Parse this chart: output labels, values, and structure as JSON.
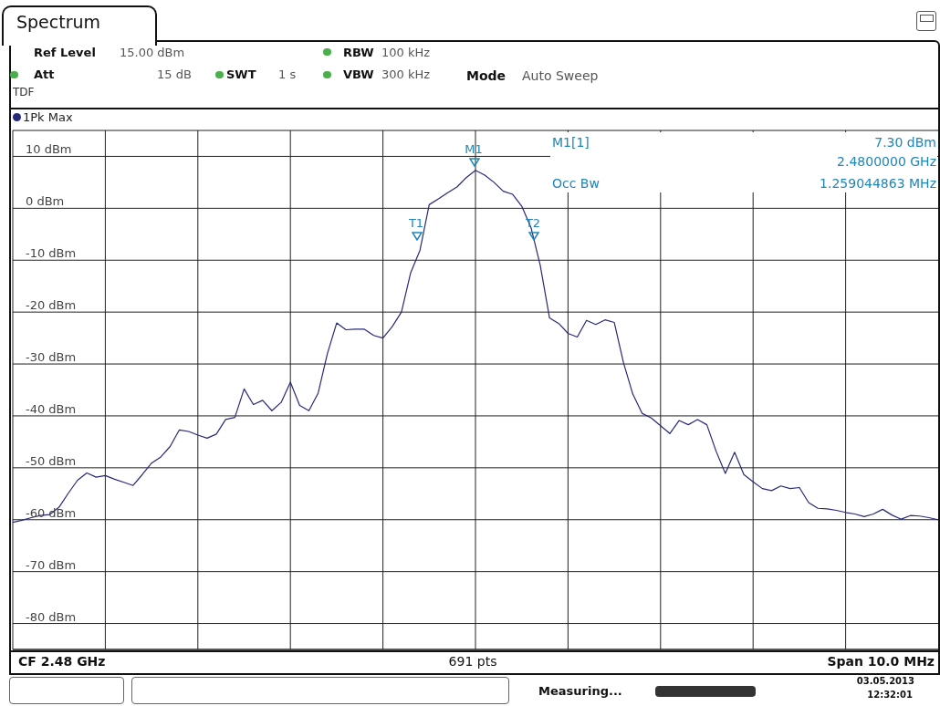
{
  "chart_data": {
    "type": "line",
    "title": "Spectrum",
    "categories": [
      null,
      null,
      null,
      null,
      null,
      null,
      null,
      null,
      null,
      null,
      null,
      null,
      null,
      null,
      null,
      null,
      null,
      null,
      null,
      null,
      null,
      null,
      null,
      null,
      null,
      null,
      null,
      null,
      null,
      null,
      null,
      null,
      null,
      null,
      null,
      null,
      null,
      null,
      null,
      null,
      null,
      null,
      null,
      null,
      null,
      null,
      null,
      null,
      null,
      null,
      null,
      null,
      null,
      null,
      null,
      null,
      null,
      null,
      null,
      null,
      null,
      null,
      null,
      null,
      null,
      null,
      null,
      null,
      null,
      null,
      null,
      null,
      null,
      null,
      null,
      null,
      null,
      null,
      null,
      null,
      null,
      null,
      null,
      null,
      null,
      null,
      null,
      null,
      null,
      null,
      null,
      null,
      null,
      null,
      null,
      null,
      null,
      null,
      null,
      null,
      null
    ],
    "ylim": [
      -85,
      15
    ],
    "yticks": [
      {
        "value": 10,
        "label": "10 dBm"
      },
      {
        "value": 0,
        "label": "0 dBm"
      },
      {
        "value": -10,
        "label": "-10 dBm"
      },
      {
        "value": -20,
        "label": "-20 dBm"
      },
      {
        "value": -30,
        "label": "-30 dBm"
      },
      {
        "value": -40,
        "label": "-40 dBm"
      },
      {
        "value": -50,
        "label": "-50 dBm"
      },
      {
        "value": -60,
        "label": "-60 dBm"
      },
      {
        "value": -70,
        "label": "-70 dBm"
      },
      {
        "value": -80,
        "label": "-80 dBm"
      }
    ],
    "grid": true,
    "legend": "top left",
    "series": [
      {
        "name": "1Pk Max",
        "color": "#27297a",
        "values": [
          -60.5,
          -60.1,
          -59.6,
          -59.2,
          -59,
          -57.6,
          -54.9,
          -52.4,
          -51,
          -51.8,
          -51.5,
          -52.2,
          -52.8,
          -53.4,
          -51.3,
          -49.1,
          -47.9,
          -45.9,
          -42.7,
          -43,
          -43.7,
          -44.3,
          -43.5,
          -40.7,
          -40.3,
          -34.8,
          -37.8,
          -37,
          -39,
          -37.4,
          -33.5,
          -38,
          -39,
          -35.6,
          -28,
          -22.1,
          -23.4,
          -23.3,
          -23.3,
          -24.5,
          -25,
          -22.8,
          -20,
          -12.4,
          -8.1,
          0.7,
          1.8,
          3,
          4.1,
          5.9,
          7.3,
          6.4,
          5,
          3.3,
          2.7,
          0.4,
          -3.7,
          -11,
          -21.1,
          -22.2,
          -24.1,
          -24.8,
          -21.6,
          -22.4,
          -21.5,
          -22,
          -29.8,
          -35.8,
          -39.5,
          -40.4,
          -41.9,
          -43.4,
          -40.9,
          -41.7,
          -40.7,
          -41.7,
          -46.8,
          -51.1,
          -47,
          -51.3,
          -52.7,
          -54,
          -54.4,
          -53.5,
          -54,
          -53.8,
          -56.7,
          -57.8,
          -57.9,
          -58.2,
          -58.6,
          -58.9,
          -59.4,
          -58.9,
          -58,
          -59.1,
          -59.9,
          -59.2,
          -59.3,
          -59.6,
          -60
        ]
      }
    ],
    "annotations": [
      "Ref Level",
      "15.00 dBm",
      "Att",
      "15 dB",
      "SWT",
      "1 s",
      "RBW",
      "100 kHz",
      "VBW",
      "300 kHz",
      "Mode",
      "Auto Sweep",
      "TDF",
      "M1[1]",
      "7.30 dBm",
      "2.4800000 GHz",
      "Occ Bw",
      "1.259044863 MHz",
      "CF 2.48 GHz",
      "691 pts",
      "Span 10.0 MHz",
      "Measuring...",
      "03.05.2013",
      "12:32:01",
      "M1",
      "T1",
      "T2"
    ]
  }
}
